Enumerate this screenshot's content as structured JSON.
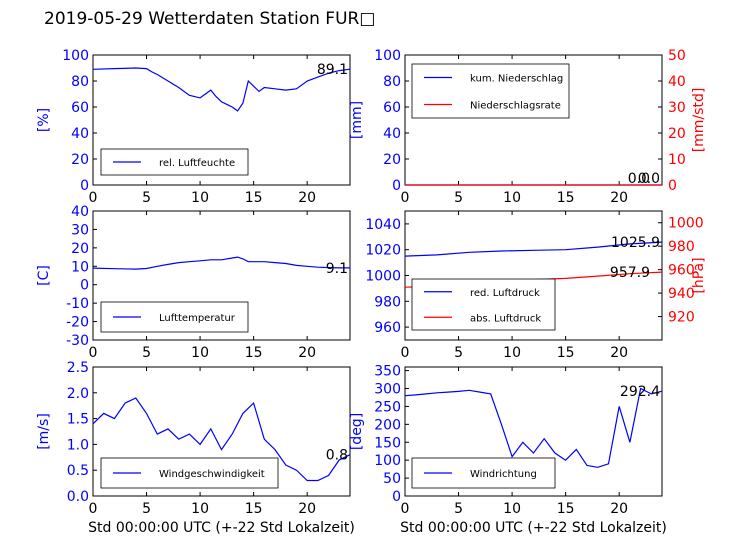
{
  "title": "2019-05-29 Wetterdaten Station FUR□",
  "xaxis_label": "Std 00:00:00 UTC (+-22 Std Lokalzeit)",
  "colors": {
    "primary": "#0000ff",
    "secondary": "#ff0000",
    "axis": "#000000"
  },
  "chart_data": [
    {
      "type": "line",
      "panel": "top-left",
      "title": "",
      "xlabel": "",
      "ylabel": "[%]",
      "xlim": [
        0,
        24
      ],
      "ylim": [
        0,
        100
      ],
      "xticks": [
        0,
        5,
        10,
        15,
        20
      ],
      "yticks": [
        0,
        20,
        40,
        60,
        80,
        100
      ],
      "legend": "bottom-left",
      "grid": false,
      "series": [
        {
          "name": "rel. Luftfeuchte",
          "color": "#0000ff",
          "axis": "left",
          "x": [
            0,
            2,
            4,
            5,
            5.5,
            6,
            7,
            8,
            9,
            10,
            10.5,
            11,
            11.5,
            12,
            12.5,
            13,
            13.5,
            14,
            14.5,
            15,
            15.5,
            16,
            17,
            18,
            19,
            20,
            21,
            22,
            23,
            24
          ],
          "y": [
            89,
            89.5,
            90,
            89.5,
            87,
            85,
            80,
            75,
            69,
            67,
            70,
            73,
            68,
            64,
            62,
            60,
            57,
            63,
            80,
            76,
            72,
            75,
            74,
            73,
            74,
            80,
            83,
            86,
            88,
            89.1
          ],
          "last_label": "89.1"
        }
      ]
    },
    {
      "type": "line",
      "panel": "top-right",
      "title": "",
      "xlabel": "",
      "ylabel": "[mm]",
      "ylabel_right": "[mm/std]",
      "xlim": [
        0,
        24
      ],
      "ylim": [
        0,
        100
      ],
      "ylim_right": [
        0,
        50
      ],
      "xticks": [
        0,
        5,
        10,
        15,
        20
      ],
      "yticks": [
        0,
        20,
        40,
        60,
        80,
        100
      ],
      "yticks_right": [
        0,
        10,
        20,
        30,
        40,
        50
      ],
      "legend": "top-left",
      "grid": false,
      "series": [
        {
          "name": "kum. Niederschlag",
          "color": "#0000ff",
          "axis": "left",
          "x": [
            0,
            24
          ],
          "y": [
            0,
            0
          ],
          "last_label": "0.0"
        },
        {
          "name": "Niederschlagsrate",
          "color": "#ff0000",
          "axis": "right",
          "x": [
            0,
            24
          ],
          "y": [
            0,
            0
          ],
          "last_label": "0.0"
        }
      ]
    },
    {
      "type": "line",
      "panel": "middle-left",
      "title": "",
      "xlabel": "",
      "ylabel": "[C]",
      "xlim": [
        0,
        24
      ],
      "ylim": [
        -30,
        40
      ],
      "xticks": [
        0,
        5,
        10,
        15,
        20
      ],
      "yticks": [
        -30,
        -20,
        -10,
        0,
        10,
        20,
        30,
        40
      ],
      "legend": "bottom-left",
      "grid": false,
      "series": [
        {
          "name": "Lufttemperatur",
          "color": "#0000ff",
          "axis": "left",
          "x": [
            0,
            2,
            4,
            5,
            6,
            7,
            8,
            9,
            10,
            11,
            12,
            13,
            13.5,
            14,
            14.5,
            15,
            16,
            17,
            18,
            19,
            20,
            21,
            22,
            23,
            24
          ],
          "y": [
            9,
            8.7,
            8.5,
            8.8,
            10,
            11,
            12,
            12.5,
            13,
            13.5,
            13.5,
            14.5,
            15,
            14,
            12.5,
            12.5,
            12.5,
            12,
            11.5,
            10.5,
            10,
            9.5,
            9.3,
            9.1,
            9.1
          ],
          "last_label": "9.1"
        }
      ]
    },
    {
      "type": "line",
      "panel": "middle-right",
      "title": "",
      "xlabel": "",
      "ylabel": "",
      "ylabel_right": "[hPa]",
      "xlim": [
        0,
        24
      ],
      "ylim": [
        950,
        1050
      ],
      "ylim_right": [
        900,
        1010
      ],
      "xticks": [
        0,
        5,
        10,
        15,
        20
      ],
      "yticks": [
        960,
        980,
        1000,
        1020,
        1040
      ],
      "yticks_right": [
        920,
        940,
        960,
        980,
        1000
      ],
      "legend": "bottom-left",
      "grid": false,
      "series": [
        {
          "name": "red. Luftdruck",
          "color": "#0000ff",
          "axis": "left",
          "x": [
            0,
            3,
            6,
            9,
            12,
            15,
            18,
            21,
            24
          ],
          "y": [
            1015,
            1016,
            1018,
            1019,
            1019.5,
            1020,
            1022,
            1024.5,
            1025.9
          ],
          "last_label": "1025.9"
        },
        {
          "name": "abs. Luftdruck",
          "color": "#ff0000",
          "axis": "right",
          "x": [
            0,
            3,
            6,
            9,
            12,
            15,
            18,
            21,
            24
          ],
          "y": [
            945,
            946,
            948,
            950,
            951.5,
            952.5,
            954.5,
            956.5,
            957.9
          ],
          "last_label": "957.9"
        }
      ]
    },
    {
      "type": "line",
      "panel": "bottom-left",
      "title": "",
      "xlabel": "Std 00:00:00 UTC (+-22 Std Lokalzeit)",
      "ylabel": "[m/s]",
      "xlim": [
        0,
        24
      ],
      "ylim": [
        0,
        2.5
      ],
      "xticks": [
        0,
        5,
        10,
        15,
        20
      ],
      "yticks": [
        0.0,
        0.5,
        1.0,
        1.5,
        2.0,
        2.5
      ],
      "legend": "bottom-left",
      "grid": false,
      "series": [
        {
          "name": "Windgeschwindigkeit",
          "color": "#0000ff",
          "axis": "left",
          "x": [
            0,
            1,
            2,
            3,
            4,
            5,
            6,
            7,
            8,
            9,
            10,
            11,
            12,
            13,
            14,
            15,
            16,
            17,
            18,
            19,
            20,
            21,
            22,
            23,
            24
          ],
          "y": [
            1.4,
            1.6,
            1.5,
            1.8,
            1.9,
            1.6,
            1.2,
            1.3,
            1.1,
            1.2,
            1.0,
            1.3,
            0.9,
            1.2,
            1.6,
            1.8,
            1.1,
            0.9,
            0.6,
            0.5,
            0.3,
            0.3,
            0.4,
            0.7,
            0.8
          ],
          "last_label": "0.8"
        }
      ]
    },
    {
      "type": "line",
      "panel": "bottom-right",
      "title": "",
      "xlabel": "Std 00:00:00 UTC (+-22 Std Lokalzeit)",
      "ylabel": "[deg]",
      "xlim": [
        0,
        24
      ],
      "ylim": [
        0,
        360
      ],
      "xticks": [
        0,
        5,
        10,
        15,
        20
      ],
      "yticks": [
        0,
        50,
        100,
        150,
        200,
        250,
        300,
        350
      ],
      "legend": "bottom-left",
      "grid": false,
      "series": [
        {
          "name": "Windrichtung",
          "color": "#0000ff",
          "axis": "left",
          "x": [
            0,
            1,
            2,
            3,
            4,
            5,
            6,
            7,
            8,
            9,
            10,
            11,
            12,
            13,
            14,
            15,
            16,
            17,
            18,
            19,
            20,
            21,
            22,
            23,
            24
          ],
          "y": [
            280,
            282,
            285,
            288,
            290,
            292,
            295,
            290,
            285,
            200,
            110,
            150,
            120,
            160,
            120,
            100,
            130,
            85,
            80,
            90,
            250,
            150,
            300,
            285,
            292.4
          ],
          "last_label": "292.4"
        }
      ]
    }
  ]
}
